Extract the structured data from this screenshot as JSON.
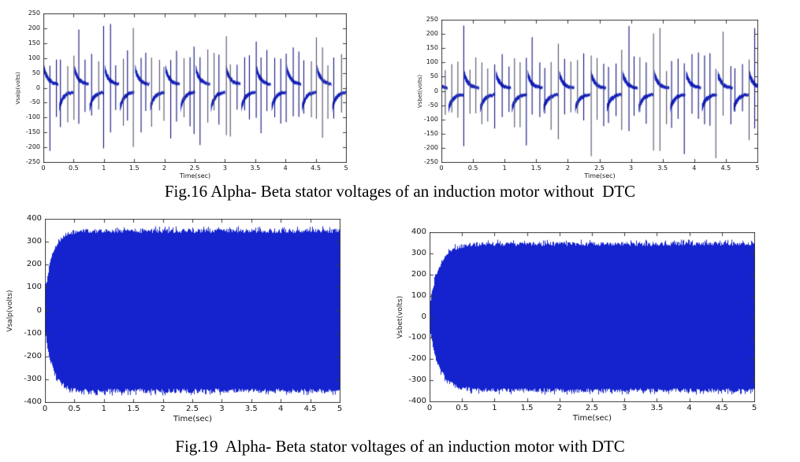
{
  "page": {
    "background": "#ffffff"
  },
  "figures": [
    {
      "id": "fig16",
      "caption": "Fig.16 Alpha- Beta stator voltages of an induction motor without  DTC"
    },
    {
      "id": "fig19",
      "caption": "Fig.19  Alpha- Beta stator voltages of an induction motor with DTC"
    }
  ],
  "chart_data": [
    {
      "id": "alpha-stator-voltage-without-dtc",
      "type": "line",
      "figure": "Fig.16",
      "series_name": "Alpha stator voltage without DTC",
      "title": "",
      "xlabel": "Time(sec)",
      "ylabel": "Vsalp(volts)",
      "xlim": [
        0,
        5
      ],
      "ylim": [
        -250,
        250
      ],
      "xticks": [
        0,
        0.5,
        1,
        1.5,
        2,
        2.5,
        3,
        3.5,
        4,
        4.5,
        5
      ],
      "yticks": [
        -250,
        -200,
        -150,
        -100,
        -50,
        0,
        50,
        100,
        150,
        200,
        250
      ],
      "grid": false,
      "legend": false,
      "line_color": "#1220bd",
      "spike_color": "#50506a",
      "waveform": {
        "kind": "commutated",
        "fundamental_period_sec": 0.5,
        "band_peak_volts": 65,
        "band_floor_volts": 12,
        "band_decay_tau_sec": 0.07,
        "spike_spacing_sec": 0.1,
        "spike_min_volts": 70,
        "spike_max_volts": 215,
        "phase_offset_sec": 0.0,
        "seed": 11
      }
    },
    {
      "id": "beta-stator-voltage-without-dtc",
      "type": "line",
      "figure": "Fig.16",
      "series_name": "Beta stator voltage without DTC",
      "title": "",
      "xlabel": "Time(sec)",
      "ylabel": "Vsbet(volts)",
      "xlim": [
        0,
        5
      ],
      "ylim": [
        -250,
        250
      ],
      "xticks": [
        0,
        0.5,
        1,
        1.5,
        2,
        2.5,
        3,
        3.5,
        4,
        4.5,
        5
      ],
      "yticks": [
        -250,
        -200,
        -150,
        -100,
        -50,
        0,
        50,
        100,
        150,
        200,
        250
      ],
      "grid": false,
      "legend": false,
      "line_color": "#1220bd",
      "spike_color": "#50506a",
      "waveform": {
        "kind": "commutated",
        "fundamental_period_sec": 0.5,
        "band_peak_volts": 60,
        "band_floor_volts": 10,
        "band_decay_tau_sec": 0.07,
        "spike_spacing_sec": 0.1,
        "spike_min_volts": 70,
        "spike_max_volts": 235,
        "phase_offset_sec": 0.35,
        "seed": 23
      }
    },
    {
      "id": "alpha-stator-voltage-with-dtc",
      "type": "line",
      "figure": "Fig.19",
      "series_name": "Alpha stator voltage with DTC",
      "title": "",
      "xlabel": "Time(sec)",
      "ylabel": "Vsalp(volts)",
      "xlim": [
        0,
        5
      ],
      "ylim": [
        -400,
        400
      ],
      "xticks": [
        0,
        0.5,
        1,
        1.5,
        2,
        2.5,
        3,
        3.5,
        4,
        4.5,
        5
      ],
      "yticks": [
        -400,
        -300,
        -200,
        -100,
        0,
        100,
        200,
        300,
        400
      ],
      "grid": false,
      "legend": false,
      "line_color": "#1423cd",
      "waveform": {
        "kind": "dense",
        "steady_envelope_volts": 358,
        "initial_envelope_volts": 95,
        "rise_tau_sec": 0.13,
        "ripple_volts": 20,
        "seed": 5
      }
    },
    {
      "id": "beta-stator-voltage-with-dtc",
      "type": "line",
      "figure": "Fig.19",
      "series_name": "Beta stator voltage with DTC",
      "title": "",
      "xlabel": "Time(sec)",
      "ylabel": "Vsbet(volts)",
      "xlim": [
        0,
        5
      ],
      "ylim": [
        -400,
        400
      ],
      "xticks": [
        0,
        0.5,
        1,
        1.5,
        2,
        2.5,
        3,
        3.5,
        4,
        4.5,
        5
      ],
      "yticks": [
        -400,
        -300,
        -200,
        -100,
        0,
        100,
        200,
        300,
        400
      ],
      "grid": false,
      "legend": false,
      "line_color": "#1423cd",
      "waveform": {
        "kind": "dense",
        "steady_envelope_volts": 355,
        "initial_envelope_volts": 70,
        "rise_tau_sec": 0.15,
        "ripple_volts": 20,
        "seed": 9
      }
    }
  ]
}
